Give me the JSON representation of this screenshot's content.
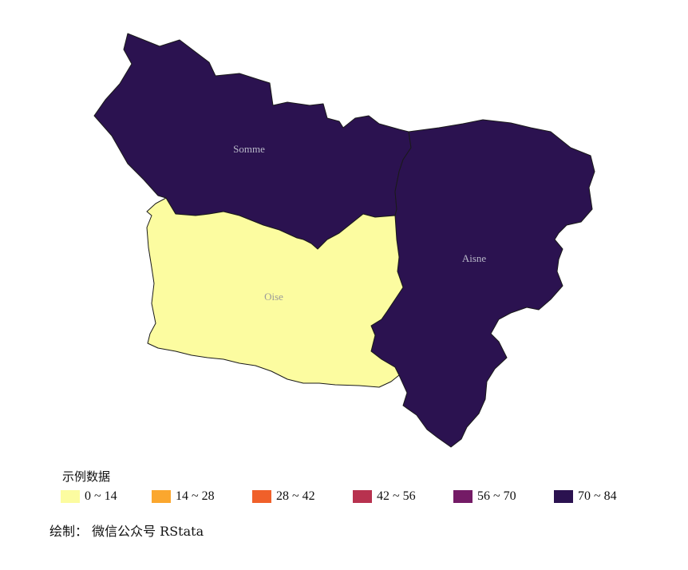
{
  "map": {
    "regions": [
      {
        "id": "somme",
        "name": "Somme",
        "fill": "#2b1250",
        "label_color": "#b8b8c8"
      },
      {
        "id": "aisne",
        "name": "Aisne",
        "fill": "#2b1250",
        "label_color": "#b8b8c8"
      },
      {
        "id": "oise",
        "name": "Oise",
        "fill": "#fcfca0",
        "label_color": "#9a9a9a"
      }
    ]
  },
  "legend": {
    "title": "示例数据",
    "items": [
      {
        "label": "0 ~ 14",
        "color": "#fcfca0"
      },
      {
        "label": "14 ~ 28",
        "color": "#fba72e"
      },
      {
        "label": "28 ~ 42",
        "color": "#f0602a"
      },
      {
        "label": "42 ~ 56",
        "color": "#b8324f"
      },
      {
        "label": "56 ~ 70",
        "color": "#741b66"
      },
      {
        "label": "70 ~ 84",
        "color": "#2b1250"
      }
    ]
  },
  "caption": "绘制：  微信公众号 RStata"
}
